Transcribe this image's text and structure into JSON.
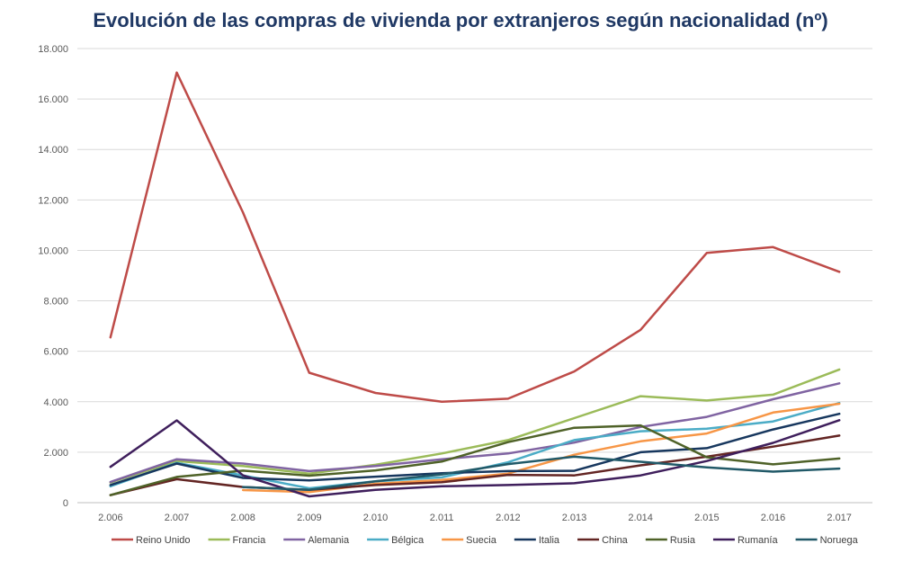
{
  "chart_data": {
    "type": "line",
    "title": "Evolución de las compras de vivienda por extranjeros según nacionalidad (nº)",
    "xlabel": "",
    "ylabel": "",
    "ylim": [
      0,
      18000
    ],
    "yticks": [
      0,
      2000,
      4000,
      6000,
      8000,
      10000,
      12000,
      14000,
      16000,
      18000
    ],
    "ytick_labels": [
      "0",
      "2.000",
      "4.000",
      "6.000",
      "8.000",
      "10.000",
      "12.000",
      "14.000",
      "16.000",
      "18.000"
    ],
    "categories": [
      "2.006",
      "2.007",
      "2.008",
      "2.009",
      "2.010",
      "2.011",
      "2.012",
      "2.013",
      "2.014",
      "2.015",
      "2.016",
      "2.017"
    ],
    "grid": true,
    "legend_position": "bottom",
    "series": [
      {
        "name": "Reino Unido",
        "color": "#be4b48",
        "values": [
          6550,
          17050,
          11500,
          5150,
          4350,
          4000,
          4120,
          5200,
          6850,
          9900,
          10130,
          9150
        ]
      },
      {
        "name": "Francia",
        "color": "#9bbb59",
        "values": [
          800,
          1650,
          1450,
          1150,
          1500,
          1950,
          2480,
          3350,
          4220,
          4050,
          4280,
          5280
        ]
      },
      {
        "name": "Alemania",
        "color": "#8064a2",
        "values": [
          820,
          1720,
          1550,
          1250,
          1450,
          1720,
          1950,
          2380,
          3000,
          3400,
          4100,
          4730
        ]
      },
      {
        "name": "Bélgica",
        "color": "#4bacc6",
        "values": [
          650,
          1580,
          1080,
          570,
          850,
          1000,
          1600,
          2480,
          2830,
          2930,
          3220,
          3950
        ]
      },
      {
        "name": "Suecia",
        "color": "#f79646",
        "values": [
          null,
          null,
          500,
          420,
          750,
          900,
          1150,
          1900,
          2430,
          2740,
          3570,
          3920
        ]
      },
      {
        "name": "Italia",
        "color": "#17375e",
        "values": [
          700,
          1550,
          980,
          880,
          1030,
          1170,
          1250,
          1260,
          2000,
          2160,
          2900,
          3520
        ]
      },
      {
        "name": "China",
        "color": "#632523",
        "values": [
          300,
          930,
          620,
          510,
          700,
          810,
          1100,
          1080,
          1480,
          1820,
          2220,
          2660
        ]
      },
      {
        "name": "Rusia",
        "color": "#4f6228",
        "values": [
          300,
          1020,
          1270,
          1070,
          1280,
          1630,
          2400,
          2970,
          3060,
          1800,
          1520,
          1750
        ]
      },
      {
        "name": "Rumanía",
        "color": "#3f1f5c",
        "values": [
          1420,
          3260,
          1080,
          250,
          510,
          650,
          700,
          770,
          1080,
          1650,
          2370,
          3270
        ]
      },
      {
        "name": "Noruega",
        "color": "#215968",
        "values": [
          null,
          null,
          620,
          510,
          850,
          1120,
          1530,
          1820,
          1620,
          1400,
          1230,
          1350
        ]
      }
    ]
  }
}
